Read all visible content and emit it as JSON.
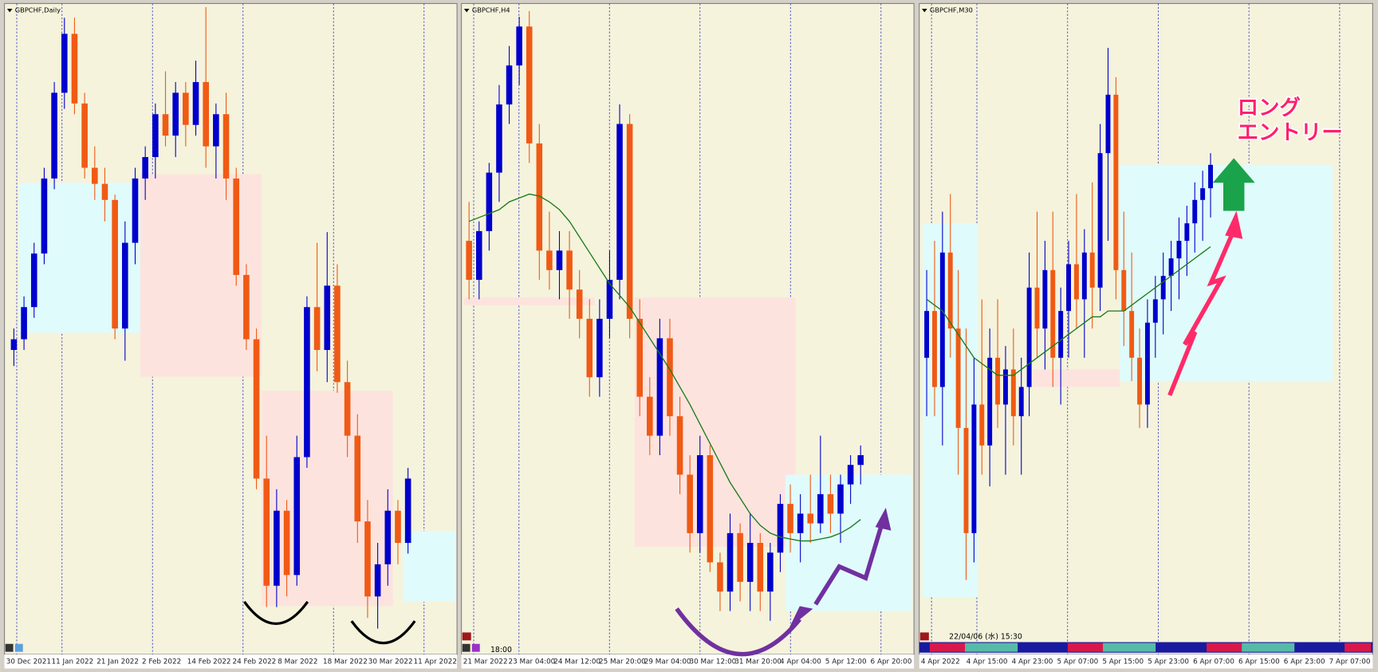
{
  "chart_data": [
    {
      "type": "candlestick",
      "title": "GBPCHF,Daily",
      "ylim": [
        1.2,
        1.26
      ],
      "up_color": "#0000cd",
      "down_color": "#f05a14",
      "open": [
        1.228,
        1.229,
        1.232,
        1.237,
        1.244,
        1.252,
        1.2575,
        1.251,
        1.245,
        1.2435,
        1.242,
        1.23,
        1.238,
        1.244,
        1.246,
        1.25,
        1.248,
        1.252,
        1.249,
        1.253,
        1.247,
        1.25,
        1.244,
        1.235,
        1.229,
        1.216,
        1.206,
        1.213,
        1.207,
        1.218,
        1.232,
        1.228,
        1.234,
        1.225,
        1.22,
        1.212,
        1.205,
        1.208,
        1.213,
        1.21
      ],
      "high": [
        1.23,
        1.233,
        1.238,
        1.245,
        1.253,
        1.259,
        1.259,
        1.252,
        1.247,
        1.245,
        1.2425,
        1.24,
        1.245,
        1.247,
        1.251,
        1.254,
        1.253,
        1.253,
        1.255,
        1.26,
        1.251,
        1.252,
        1.245,
        1.236,
        1.23,
        1.22,
        1.215,
        1.214,
        1.22,
        1.233,
        1.238,
        1.239,
        1.236,
        1.227,
        1.222,
        1.214,
        1.21,
        1.215,
        1.214,
        1.217
      ],
      "low": [
        1.2265,
        1.228,
        1.231,
        1.236,
        1.243,
        1.2505,
        1.25,
        1.244,
        1.242,
        1.24,
        1.229,
        1.227,
        1.236,
        1.242,
        1.244,
        1.247,
        1.246,
        1.247,
        1.248,
        1.245,
        1.244,
        1.242,
        1.234,
        1.228,
        1.215,
        1.204,
        1.204,
        1.205,
        1.206,
        1.217,
        1.226,
        1.225,
        1.224,
        1.218,
        1.21,
        1.203,
        1.202,
        1.206,
        1.208,
        1.209
      ],
      "close": [
        1.229,
        1.232,
        1.237,
        1.244,
        1.252,
        1.2575,
        1.251,
        1.245,
        1.2435,
        1.242,
        1.23,
        1.238,
        1.244,
        1.246,
        1.25,
        1.248,
        1.252,
        1.249,
        1.253,
        1.247,
        1.25,
        1.244,
        1.235,
        1.229,
        1.216,
        1.206,
        1.213,
        1.207,
        1.218,
        1.232,
        1.228,
        1.234,
        1.225,
        1.22,
        1.212,
        1.205,
        1.208,
        1.213,
        1.21,
        1.216
      ],
      "zones": [
        {
          "start": 1,
          "end": 13,
          "low": 1.2296,
          "high": 1.2436,
          "color": "#e0fbfb"
        },
        {
          "start": 13,
          "end": 24,
          "low": 1.2255,
          "high": 1.2444,
          "color": "#fde3de"
        },
        {
          "start": 25,
          "end": 37,
          "low": 1.2041,
          "high": 1.2242,
          "color": "#fde3de"
        },
        {
          "start": 39,
          "end": 44,
          "low": 1.2045,
          "high": 1.2111,
          "color": "#e0fbfb"
        }
      ],
      "xtick_labels": [
        "30 Dec 2021",
        "11 Jan 2022",
        "21 Jan 2022",
        "2 Feb 2022",
        "14 Feb 2022",
        "24 Feb 2022",
        "8 Mar 2022",
        "18 Mar 2022",
        "30 Mar 2022",
        "11 Apr 2022"
      ]
    },
    {
      "type": "candlestick",
      "title": "GBPCHF,H4",
      "ylim": [
        1.201,
        1.234
      ],
      "up_color": "#0000cd",
      "down_color": "#f05a14",
      "ma_color": "#1a7a1a",
      "open": [
        1.222,
        1.22,
        1.2225,
        1.2255,
        1.229,
        1.231,
        1.233,
        1.227,
        1.2215,
        1.2205,
        1.2215,
        1.2195,
        1.218,
        1.215,
        1.218,
        1.22,
        1.228,
        1.218,
        1.214,
        1.212,
        1.217,
        1.213,
        1.21,
        1.207,
        1.211,
        1.2055,
        1.204,
        1.207,
        1.2045,
        1.2065,
        1.204,
        1.206,
        1.2085,
        1.207,
        1.208,
        1.2075,
        1.209,
        1.208,
        1.2095,
        1.2105
      ],
      "high": [
        1.224,
        1.223,
        1.226,
        1.23,
        1.232,
        1.2335,
        1.2338,
        1.228,
        1.2235,
        1.2225,
        1.2225,
        1.2205,
        1.219,
        1.219,
        1.2215,
        1.229,
        1.2285,
        1.219,
        1.215,
        1.218,
        1.218,
        1.214,
        1.211,
        1.212,
        1.2115,
        1.206,
        1.208,
        1.2075,
        1.208,
        1.207,
        1.2065,
        1.209,
        1.2095,
        1.209,
        1.21,
        1.212,
        1.21,
        1.21,
        1.211,
        1.2115
      ],
      "low": [
        1.219,
        1.219,
        1.2215,
        1.224,
        1.228,
        1.23,
        1.226,
        1.22,
        1.2195,
        1.219,
        1.218,
        1.217,
        1.214,
        1.214,
        1.217,
        1.219,
        1.217,
        1.213,
        1.211,
        1.211,
        1.212,
        1.209,
        1.206,
        1.206,
        1.205,
        1.203,
        1.203,
        1.2035,
        1.203,
        1.203,
        1.2025,
        1.205,
        1.206,
        1.2055,
        1.2065,
        1.207,
        1.207,
        1.2065,
        1.2085,
        1.2095
      ],
      "close": [
        1.22,
        1.2225,
        1.2255,
        1.229,
        1.231,
        1.233,
        1.227,
        1.2215,
        1.2205,
        1.2215,
        1.2195,
        1.218,
        1.215,
        1.218,
        1.22,
        1.228,
        1.218,
        1.214,
        1.212,
        1.217,
        1.213,
        1.21,
        1.207,
        1.211,
        1.2055,
        1.204,
        1.207,
        1.2045,
        1.2065,
        1.204,
        1.206,
        1.2085,
        1.207,
        1.208,
        1.2075,
        1.209,
        1.208,
        1.2095,
        1.2105,
        1.211
      ],
      "ma": [
        1.223,
        1.2232,
        1.2234,
        1.2236,
        1.224,
        1.2242,
        1.2244,
        1.2243,
        1.224,
        1.2236,
        1.223,
        1.2222,
        1.2214,
        1.2206,
        1.2198,
        1.2192,
        1.2186,
        1.2178,
        1.217,
        1.2162,
        1.2154,
        1.2145,
        1.2136,
        1.2126,
        1.2116,
        1.2106,
        1.2096,
        1.2088,
        1.208,
        1.2074,
        1.207,
        1.2068,
        1.2067,
        1.2066,
        1.2066,
        1.2067,
        1.2068,
        1.207,
        1.2073,
        1.2077
      ],
      "zones": [
        {
          "start": 0,
          "end": 12,
          "low": 1.2187,
          "high": 1.2191,
          "color": "#fde3de"
        },
        {
          "start": 17,
          "end": 32,
          "low": 1.2063,
          "high": 1.2191,
          "color": "#fde3de"
        },
        {
          "start": 32,
          "end": 44,
          "low": 1.203,
          "high": 1.21,
          "color": "#e0fbfb"
        }
      ],
      "xtick_labels": [
        "21 Mar 2022",
        "23 Mar 04:00",
        "24 Mar 12:00",
        "25 Mar 20:00",
        "29 Mar 04:00",
        "30 Mar 12:00",
        "31 Mar 20:00",
        "4 Apr 04:00",
        "5 Apr 12:00",
        "6 Apr 20:00"
      ],
      "annotations": [
        "18:00"
      ]
    },
    {
      "type": "candlestick",
      "title": "GBPCHF,M30",
      "ylim": [
        1.203,
        1.214
      ],
      "up_color": "#0000cd",
      "down_color": "#f05a14",
      "ma_color": "#1a7a1a",
      "open": [
        1.208,
        1.2088,
        1.2075,
        1.2098,
        1.2085,
        1.2068,
        1.205,
        1.2072,
        1.2065,
        1.208,
        1.2072,
        1.2078,
        1.207,
        1.2075,
        1.2092,
        1.2085,
        1.2095,
        1.208,
        1.2088,
        1.2096,
        1.209,
        1.2098,
        1.2092,
        1.2115,
        1.2125,
        1.2095,
        1.2088,
        1.208,
        1.2072,
        1.2086,
        1.209,
        1.2094,
        1.2097,
        1.21,
        1.2103,
        1.2107,
        1.2109
      ],
      "high": [
        1.2095,
        1.21,
        1.2105,
        1.2108,
        1.2095,
        1.2085,
        1.208,
        1.209,
        1.2085,
        1.209,
        1.2082,
        1.2085,
        1.208,
        1.2098,
        1.2105,
        1.21,
        1.2105,
        1.2092,
        1.21,
        1.2108,
        1.2102,
        1.211,
        1.212,
        1.2133,
        1.2128,
        1.2105,
        1.2098,
        1.2085,
        1.209,
        1.2094,
        1.2098,
        1.21,
        1.2104,
        1.2106,
        1.211,
        1.2112,
        1.2115
      ],
      "low": [
        1.207,
        1.207,
        1.2065,
        1.208,
        1.206,
        1.2042,
        1.2045,
        1.206,
        1.2058,
        1.2068,
        1.206,
        1.2065,
        1.206,
        1.207,
        1.208,
        1.2078,
        1.2075,
        1.2072,
        1.208,
        1.2085,
        1.208,
        1.2085,
        1.2088,
        1.21,
        1.209,
        1.2082,
        1.2076,
        1.2068,
        1.2068,
        1.208,
        1.2084,
        1.2088,
        1.209,
        1.2094,
        1.2098,
        1.21,
        1.2104
      ],
      "close": [
        1.2088,
        1.2075,
        1.2098,
        1.2085,
        1.2068,
        1.205,
        1.2072,
        1.2065,
        1.208,
        1.2072,
        1.2078,
        1.207,
        1.2075,
        1.2092,
        1.2085,
        1.2095,
        1.208,
        1.2088,
        1.2096,
        1.209,
        1.2098,
        1.2092,
        1.2115,
        1.2125,
        1.2095,
        1.2088,
        1.208,
        1.2072,
        1.2086,
        1.209,
        1.2094,
        1.2097,
        1.21,
        1.2103,
        1.2107,
        1.2109,
        1.2113
      ],
      "ma": [
        1.209,
        1.2089,
        1.2088,
        1.2086,
        1.2084,
        1.2082,
        1.208,
        1.2079,
        1.2078,
        1.2077,
        1.2077,
        1.2077,
        1.2078,
        1.2079,
        1.208,
        1.2081,
        1.2082,
        1.2083,
        1.2084,
        1.2085,
        1.2086,
        1.2087,
        1.2087,
        1.2088,
        1.2088,
        1.2088,
        1.2089,
        1.209,
        1.2091,
        1.2092,
        1.2093,
        1.2094,
        1.2095,
        1.2096,
        1.2097,
        1.2098,
        1.2099
      ],
      "zones": [
        {
          "start": 0,
          "end": 6,
          "low": 1.2039,
          "high": 1.2103,
          "color": "#e0fbfb"
        },
        {
          "start": 14,
          "end": 24,
          "low": 1.2075,
          "high": 1.2078,
          "color": "#fde3de"
        },
        {
          "start": 25,
          "end": 51,
          "low": 1.2076,
          "high": 1.2113,
          "color": "#e0fbfb"
        }
      ],
      "xtick_labels": [
        "4 Apr 2022",
        "4 Apr 15:00",
        "4 Apr 23:00",
        "5 Apr 07:00",
        "5 Apr 15:00",
        "5 Apr 23:00",
        "6 Apr 07:00",
        "6 Apr 15:00",
        "6 Apr 23:00",
        "7 Apr 07:00"
      ],
      "annotations": [
        "22/04/06 (水) 15:30",
        "ロング",
        "エントリー"
      ]
    }
  ]
}
